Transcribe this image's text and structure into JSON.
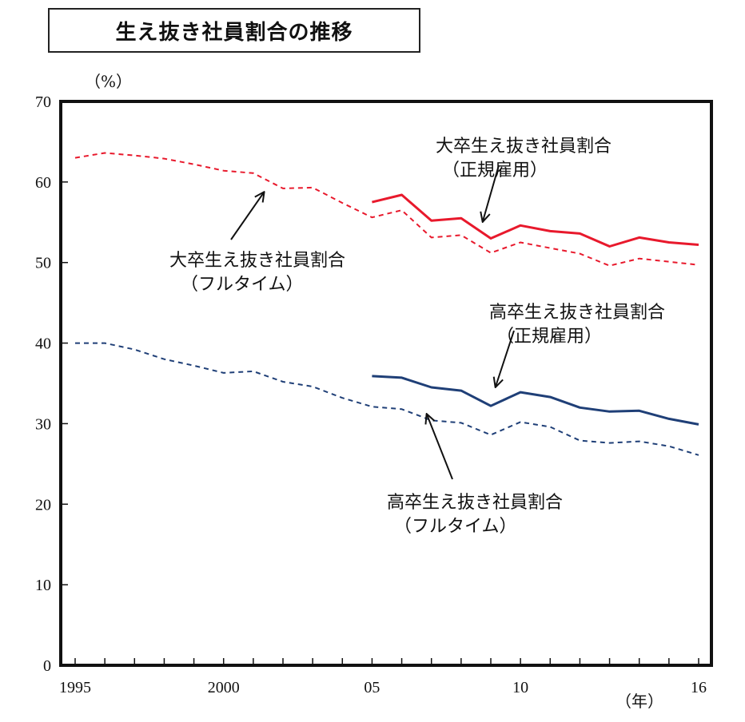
{
  "title": "生え抜き社員割合の推移",
  "chart_data": {
    "type": "line",
    "title": "生え抜き社員割合の推移",
    "ylabel": "（%）",
    "xlabel": "（年）",
    "ylim": [
      0,
      70
    ],
    "yticks": [
      0,
      10,
      20,
      30,
      40,
      50,
      60,
      70
    ],
    "xlim": [
      1995,
      2016
    ],
    "xtick_labels": [
      {
        "year": 1995,
        "label": "1995"
      },
      {
        "year": 2000,
        "label": "2000"
      },
      {
        "year": 2005,
        "label": "05"
      },
      {
        "year": 2010,
        "label": "10"
      },
      {
        "year": 2016,
        "label": "16"
      }
    ],
    "series": [
      {
        "name": "大卒生え抜き社員割合（フルタイム）",
        "color": "#e8192c",
        "style": "dashed",
        "x": [
          1995,
          1996,
          1997,
          1998,
          1999,
          2000,
          2001,
          2002,
          2003,
          2004,
          2005,
          2006,
          2007,
          2008,
          2009,
          2010,
          2011,
          2012,
          2013,
          2014,
          2015,
          2016
        ],
        "values": [
          63.0,
          63.6,
          63.3,
          62.9,
          62.2,
          61.4,
          61.1,
          59.2,
          59.3,
          57.4,
          55.6,
          56.5,
          53.1,
          53.4,
          51.2,
          52.5,
          51.8,
          51.1,
          49.6,
          50.5,
          50.1,
          49.7
        ]
      },
      {
        "name": "大卒生え抜き社員割合（正規雇用）",
        "color": "#e8192c",
        "style": "solid",
        "x": [
          2005,
          2006,
          2007,
          2008,
          2009,
          2010,
          2011,
          2012,
          2013,
          2014,
          2015,
          2016
        ],
        "values": [
          57.5,
          58.4,
          55.2,
          55.5,
          53.0,
          54.6,
          53.9,
          53.6,
          52.0,
          53.1,
          52.5,
          52.2
        ]
      },
      {
        "name": "高卒生え抜き社員割合（フルタイム）",
        "color": "#1f3f77",
        "style": "dashed",
        "x": [
          1995,
          1996,
          1997,
          1998,
          1999,
          2000,
          2001,
          2002,
          2003,
          2004,
          2005,
          2006,
          2007,
          2008,
          2009,
          2010,
          2011,
          2012,
          2013,
          2014,
          2015,
          2016
        ],
        "values": [
          40.0,
          40.0,
          39.2,
          38.0,
          37.2,
          36.3,
          36.5,
          35.2,
          34.6,
          33.2,
          32.1,
          31.8,
          30.4,
          30.1,
          28.6,
          30.2,
          29.6,
          27.9,
          27.6,
          27.8,
          27.2,
          26.1
        ]
      },
      {
        "name": "高卒生え抜き社員割合（正規雇用）",
        "color": "#1f3f77",
        "style": "solid",
        "x": [
          2005,
          2006,
          2007,
          2008,
          2009,
          2010,
          2011,
          2012,
          2013,
          2014,
          2015,
          2016
        ],
        "values": [
          35.9,
          35.7,
          34.5,
          34.1,
          32.2,
          33.9,
          33.3,
          32.0,
          31.5,
          31.6,
          30.6,
          29.9
        ]
      }
    ],
    "annotations": [
      {
        "line1": "大卒生え抜き社員割合",
        "line2": "（フルタイム）"
      },
      {
        "line1": "大卒生え抜き社員割合",
        "line2": "（正規雇用）"
      },
      {
        "line1": "高卒生え抜き社員割合",
        "line2": "（正規雇用）"
      },
      {
        "line1": "高卒生え抜き社員割合",
        "line2": "（フルタイム）"
      }
    ]
  }
}
